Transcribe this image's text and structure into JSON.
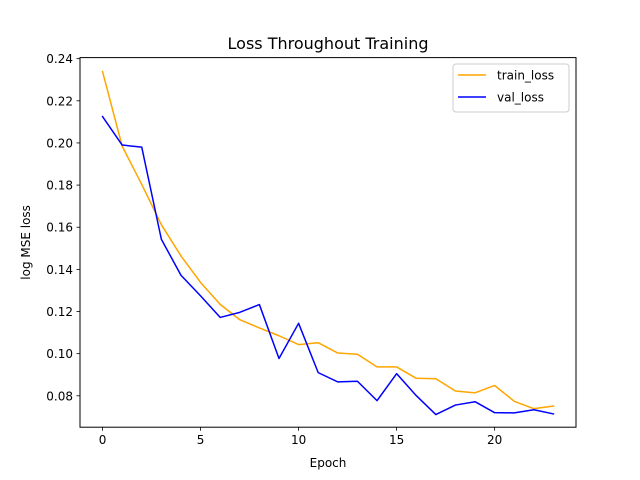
{
  "chart_data": {
    "type": "line",
    "title": "Loss Throughout Training",
    "xlabel": "Epoch",
    "ylabel": "log MSE loss",
    "xlim": [
      -1.15,
      24.15
    ],
    "ylim": [
      0.0651,
      0.2405
    ],
    "xticks": [
      0,
      5,
      10,
      15,
      20
    ],
    "xtick_labels": [
      "0",
      "5",
      "10",
      "15",
      "20"
    ],
    "yticks": [
      0.08,
      0.1,
      0.12,
      0.14,
      0.16,
      0.18,
      0.2,
      0.22,
      0.24
    ],
    "ytick_labels": [
      "0.08",
      "0.10",
      "0.12",
      "0.14",
      "0.16",
      "0.18",
      "0.20",
      "0.22",
      "0.24"
    ],
    "grid": false,
    "legend": {
      "placement": "top-right",
      "entries": [
        "train_loss",
        "val_loss"
      ]
    },
    "x": [
      0,
      1,
      2,
      3,
      4,
      5,
      6,
      7,
      8,
      9,
      10,
      11,
      12,
      13,
      14,
      15,
      16,
      17,
      18,
      19,
      20,
      21,
      22,
      23
    ],
    "series": [
      {
        "name": "train_loss",
        "color": "#ffa500",
        "values": [
          0.2339,
          0.1985,
          0.1803,
          0.1612,
          0.1464,
          0.1338,
          0.1234,
          0.1161,
          0.1122,
          0.1085,
          0.1043,
          0.1052,
          0.1003,
          0.0997,
          0.0937,
          0.0937,
          0.0883,
          0.0881,
          0.0823,
          0.0814,
          0.0849,
          0.0774,
          0.0739,
          0.0751
        ]
      },
      {
        "name": "val_loss",
        "color": "#0000ff",
        "values": [
          0.2125,
          0.199,
          0.198,
          0.1543,
          0.1372,
          0.1274,
          0.1172,
          0.1196,
          0.1233,
          0.0977,
          0.1144,
          0.091,
          0.0866,
          0.0869,
          0.0777,
          0.0905,
          0.0801,
          0.0711,
          0.0756,
          0.0772,
          0.072,
          0.0719,
          0.0734,
          0.0714
        ]
      }
    ]
  }
}
